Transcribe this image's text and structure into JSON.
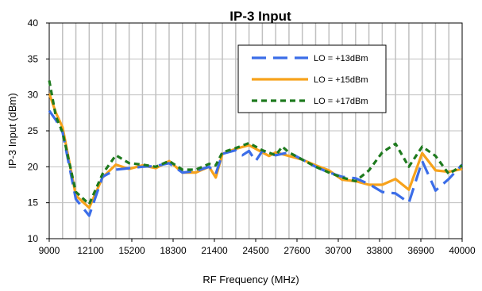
{
  "chart_data": {
    "type": "line",
    "title": "IP-3 Input",
    "xlabel": "RF Frequency (MHz)",
    "ylabel": "IP-3 Input (dBm)",
    "xlim": [
      9000,
      40000
    ],
    "ylim": [
      10,
      40
    ],
    "xticks": [
      9000,
      12100,
      15200,
      18300,
      21400,
      24500,
      27600,
      30700,
      33800,
      36900,
      40000
    ],
    "yticks": [
      10,
      15,
      20,
      25,
      30,
      35,
      40
    ],
    "x_minor_step": 1000,
    "grid": true,
    "legend_position": "top-right",
    "series": [
      {
        "name": "LO = +13dBm",
        "color": "#3b6de8",
        "dash": "long-dash",
        "points": [
          [
            9000,
            27.8
          ],
          [
            9500,
            26.5
          ],
          [
            10000,
            24.8
          ],
          [
            11000,
            15.5
          ],
          [
            12000,
            13.2
          ],
          [
            13000,
            18.6
          ],
          [
            14000,
            19.6
          ],
          [
            15000,
            19.8
          ],
          [
            16000,
            20.0
          ],
          [
            17000,
            20.1
          ],
          [
            18000,
            20.5
          ],
          [
            19000,
            19.2
          ],
          [
            20000,
            19.4
          ],
          [
            21000,
            20.0
          ],
          [
            21500,
            19.0
          ],
          [
            22000,
            21.8
          ],
          [
            23000,
            22.3
          ],
          [
            23500,
            21.6
          ],
          [
            24000,
            22.2
          ],
          [
            24500,
            20.8
          ],
          [
            25000,
            22.2
          ],
          [
            26000,
            21.6
          ],
          [
            27000,
            22.0
          ],
          [
            28000,
            21.0
          ],
          [
            29000,
            20.0
          ],
          [
            30000,
            19.2
          ],
          [
            31000,
            18.6
          ],
          [
            32000,
            18.4
          ],
          [
            33000,
            17.6
          ],
          [
            34000,
            16.5
          ],
          [
            35000,
            16.3
          ],
          [
            36000,
            15.0
          ],
          [
            37000,
            20.8
          ],
          [
            38000,
            16.7
          ],
          [
            39000,
            18.3
          ],
          [
            40000,
            20.3
          ]
        ]
      },
      {
        "name": "LO = +15dBm",
        "color": "#f7a21b",
        "dash": "solid",
        "points": [
          [
            9000,
            30.2
          ],
          [
            9500,
            27.5
          ],
          [
            10000,
            25.5
          ],
          [
            11000,
            16.0
          ],
          [
            12000,
            14.3
          ],
          [
            13000,
            18.5
          ],
          [
            14000,
            20.3
          ],
          [
            15000,
            19.7
          ],
          [
            16000,
            20.2
          ],
          [
            17000,
            19.8
          ],
          [
            18000,
            20.8
          ],
          [
            19000,
            19.2
          ],
          [
            20000,
            19.2
          ],
          [
            21000,
            20.0
          ],
          [
            21500,
            18.5
          ],
          [
            22000,
            21.8
          ],
          [
            23000,
            22.5
          ],
          [
            24000,
            23.0
          ],
          [
            25000,
            22.0
          ],
          [
            25500,
            21.5
          ],
          [
            26000,
            22.0
          ],
          [
            27000,
            21.5
          ],
          [
            28000,
            21.0
          ],
          [
            29000,
            20.2
          ],
          [
            30000,
            19.5
          ],
          [
            31000,
            18.2
          ],
          [
            32000,
            18.0
          ],
          [
            33000,
            17.5
          ],
          [
            34000,
            17.5
          ],
          [
            35000,
            18.3
          ],
          [
            36000,
            16.8
          ],
          [
            37000,
            21.9
          ],
          [
            38000,
            19.5
          ],
          [
            39000,
            19.3
          ],
          [
            40000,
            19.7
          ]
        ]
      },
      {
        "name": "LO = +17dBm",
        "color": "#1e7a1e",
        "dash": "short-dash",
        "points": [
          [
            9000,
            32.0
          ],
          [
            9500,
            27.0
          ],
          [
            10000,
            24.8
          ],
          [
            11000,
            16.5
          ],
          [
            12000,
            14.8
          ],
          [
            13000,
            19.0
          ],
          [
            14000,
            21.6
          ],
          [
            15000,
            20.5
          ],
          [
            16000,
            20.3
          ],
          [
            17000,
            20.0
          ],
          [
            18000,
            20.8
          ],
          [
            19000,
            19.6
          ],
          [
            20000,
            19.6
          ],
          [
            21000,
            20.4
          ],
          [
            21500,
            20.2
          ],
          [
            22000,
            22.0
          ],
          [
            23000,
            22.6
          ],
          [
            24000,
            23.3
          ],
          [
            25000,
            22.3
          ],
          [
            26000,
            21.6
          ],
          [
            26500,
            22.8
          ],
          [
            27000,
            22.0
          ],
          [
            28000,
            21.0
          ],
          [
            29000,
            20.0
          ],
          [
            30000,
            19.2
          ],
          [
            31000,
            18.5
          ],
          [
            32000,
            18.0
          ],
          [
            33000,
            19.5
          ],
          [
            34000,
            22.0
          ],
          [
            35000,
            23.2
          ],
          [
            36000,
            20.0
          ],
          [
            37000,
            22.8
          ],
          [
            38000,
            21.5
          ],
          [
            39000,
            19.0
          ],
          [
            40000,
            20.2
          ]
        ]
      }
    ]
  }
}
